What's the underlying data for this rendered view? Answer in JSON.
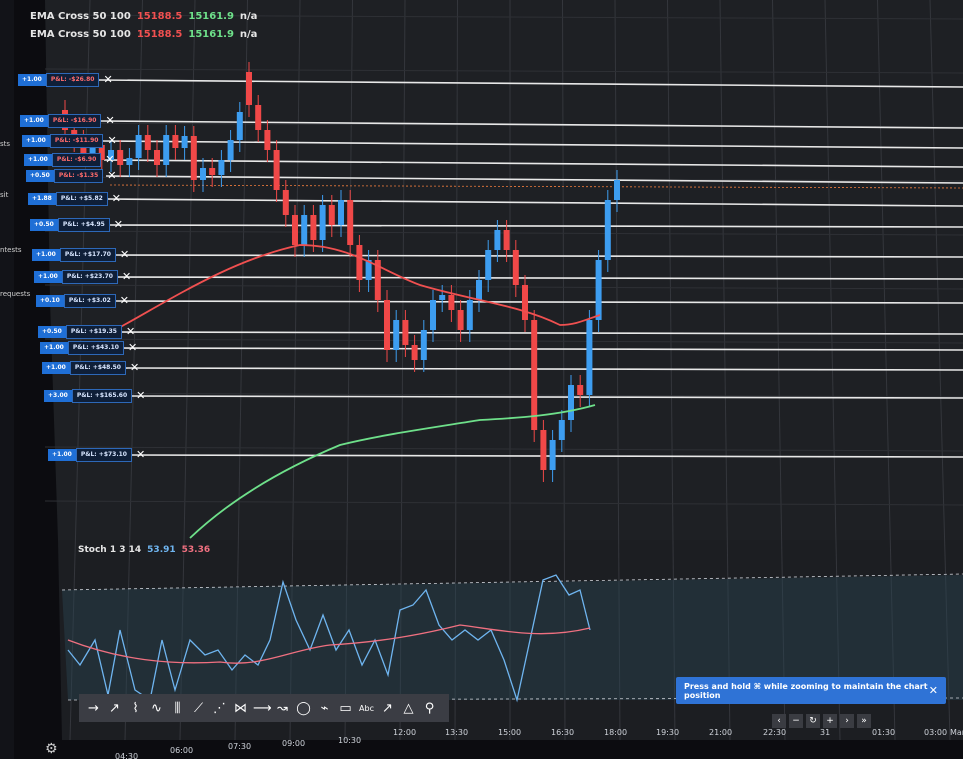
{
  "legend": {
    "line1": {
      "name": "EMA Cross 50 100",
      "v1": "15188.5",
      "v2": "15161.9",
      "v3": "n/a"
    },
    "line2": {
      "name": "EMA Cross 50 100",
      "v1": "15188.5",
      "v2": "15161.9",
      "v3": "n/a"
    }
  },
  "sidebar": {
    "items": [
      "sts",
      "sit",
      "ntests",
      "requests"
    ]
  },
  "positions": [
    {
      "qty": "+1.00",
      "pnl": "P&L: -$26.80",
      "negative": true
    },
    {
      "qty": "+1.00",
      "pnl": "P&L: -$16.90",
      "negative": true
    },
    {
      "qty": "+1.00",
      "pnl": "P&L: -$11.90",
      "negative": true
    },
    {
      "qty": "+1.00",
      "pnl": "P&L: -$6.90",
      "negative": true
    },
    {
      "qty": "+0.50",
      "pnl": "P&L: -$1.35",
      "negative": true
    },
    {
      "qty": "+1.88",
      "pnl": "P&L: +$5.82",
      "negative": false
    },
    {
      "qty": "+0.50",
      "pnl": "P&L: +$4.95",
      "negative": false
    },
    {
      "qty": "+1.00",
      "pnl": "P&L: +$17.70",
      "negative": false
    },
    {
      "qty": "+1.00",
      "pnl": "P&L: +$23.70",
      "negative": false
    },
    {
      "qty": "+0.10",
      "pnl": "P&L: +$3.02",
      "negative": false
    },
    {
      "qty": "+0.50",
      "pnl": "P&L: +$19.35",
      "negative": false
    },
    {
      "qty": "+1.00",
      "pnl": "P&L: +$43.10",
      "negative": false
    },
    {
      "qty": "+1.00",
      "pnl": "P&L: +$48.50",
      "negative": false
    },
    {
      "qty": "+3.00",
      "pnl": "P&L: +$165.60",
      "negative": false
    },
    {
      "qty": "+1.00",
      "pnl": "P&L: +$73.10",
      "negative": false
    }
  ],
  "stoch": {
    "name": "Stoch 1 3 14",
    "k": "53.91",
    "d": "53.36"
  },
  "toast": {
    "text": "Press and hold ⌘ while zooming to maintain the chart position",
    "close": "✕"
  },
  "toolbar": {
    "icons": [
      "arrow-icon",
      "trend-line-icon",
      "zigzag-icon",
      "wave-icon",
      "fib-icon",
      "pitchfork-icon",
      "gann-icon",
      "pattern-icon",
      "ray-icon",
      "brush-icon",
      "circle-icon",
      "ruler-icon",
      "rectangle-icon",
      "text-icon",
      "path-icon",
      "triangle-icon",
      "measure-icon"
    ],
    "text_tool": "Abc"
  },
  "nav": [
    "‹",
    "−",
    "↻",
    "+",
    "›",
    "»"
  ],
  "xaxis": [
    "04:30",
    "06:00",
    "07:30",
    "09:00",
    "10:30",
    "12:00",
    "13:30",
    "15:00",
    "16:30",
    "18:00",
    "19:30",
    "21:00",
    "22:30",
    "31",
    "01:30",
    "03:00",
    "Mar"
  ],
  "colors": {
    "up": "#3d9df0",
    "down": "#f04848",
    "bg": "#1e2024",
    "ema50": "#f05050",
    "ema100": "#6ee08a",
    "stochK": "#6fb5f0",
    "stochD": "#f07080",
    "accent": "#2f73d6"
  }
}
